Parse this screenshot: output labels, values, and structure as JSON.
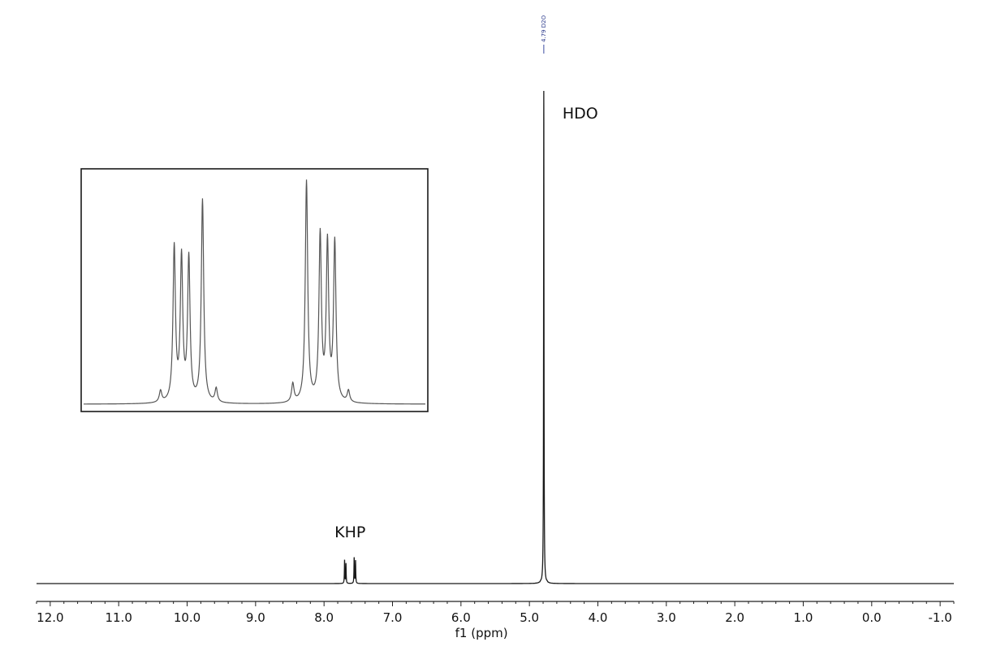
{
  "chart_data": {
    "type": "line",
    "title": "",
    "xlabel": "f1 (ppm)",
    "ylabel": "",
    "xlim": [
      12.2,
      -1.2
    ],
    "x_reversed": true,
    "x_ticks": [
      12.0,
      11.0,
      10.0,
      9.0,
      8.0,
      7.0,
      6.0,
      5.0,
      4.0,
      3.0,
      2.0,
      1.0,
      0.0,
      -1.0
    ],
    "x_tick_labels": [
      "12.0",
      "11.0",
      "10.0",
      "9.0",
      "8.0",
      "7.0",
      "6.0",
      "5.0",
      "4.0",
      "3.0",
      "2.0",
      "1.0",
      "0.0",
      "-1.0"
    ],
    "grid": false,
    "peak_list_label": "4.79 D2O",
    "annotations": [
      {
        "text": "HDO",
        "x": 4.79
      },
      {
        "text": "KHP",
        "x": 7.62
      }
    ],
    "series": [
      {
        "peaks": [
          {
            "x": 4.79,
            "height": 1.0
          },
          {
            "x": 7.7,
            "height": 0.047
          },
          {
            "x": 7.68,
            "height": 0.04
          },
          {
            "x": 7.56,
            "height": 0.052
          },
          {
            "x": 7.54,
            "height": 0.046
          }
        ]
      }
    ],
    "inset": {
      "type": "line",
      "description_source": "expansion of KHP multiplets",
      "peaks": [
        {
          "x": 7.733,
          "height": 0.05
        },
        {
          "x": 7.718,
          "height": 0.67
        },
        {
          "x": 7.71,
          "height": 0.62
        },
        {
          "x": 7.702,
          "height": 0.62
        },
        {
          "x": 7.687,
          "height": 0.88
        },
        {
          "x": 7.672,
          "height": 0.06
        },
        {
          "x": 7.588,
          "height": 0.08
        },
        {
          "x": 7.573,
          "height": 0.96
        },
        {
          "x": 7.558,
          "height": 0.72
        },
        {
          "x": 7.55,
          "height": 0.68
        },
        {
          "x": 7.542,
          "height": 0.69
        },
        {
          "x": 7.527,
          "height": 0.05
        }
      ]
    }
  }
}
